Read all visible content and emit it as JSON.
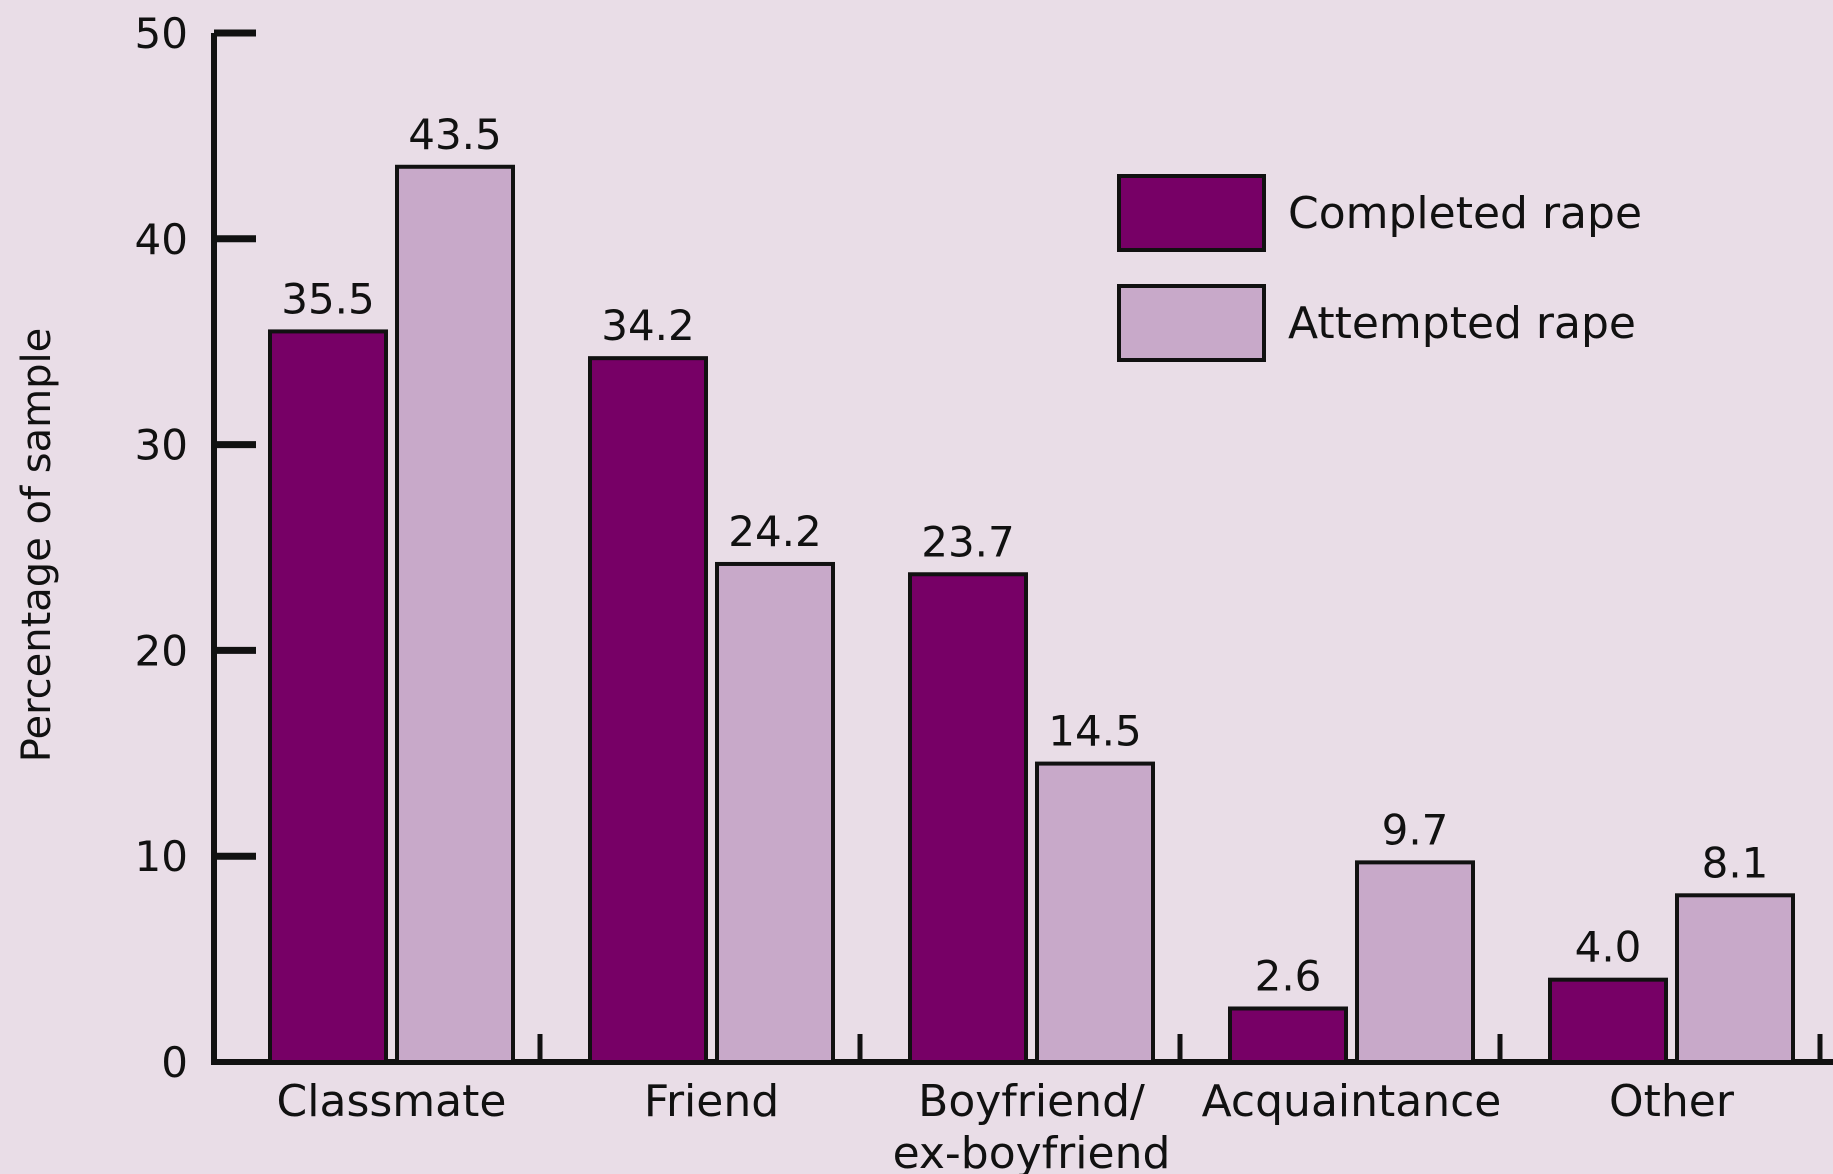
{
  "chart_data": {
    "type": "bar",
    "ylabel": "Percentage of sample",
    "ylim": [
      0,
      50
    ],
    "yticks": [
      0,
      10,
      20,
      30,
      40,
      50
    ],
    "categories": [
      [
        "Classmate"
      ],
      [
        "Friend"
      ],
      [
        "Boyfriend/",
        "ex-boyfriend"
      ],
      [
        "Acquaintance"
      ],
      [
        "Other"
      ]
    ],
    "series": [
      {
        "name": "Completed rape",
        "color": "#770066",
        "values": [
          35.5,
          34.2,
          23.7,
          2.6,
          4.0
        ],
        "labels": [
          "35.5",
          "34.2",
          "23.7",
          "2.6",
          "4.0"
        ]
      },
      {
        "name": "Attempted rape",
        "color": "#c8a9c9",
        "values": [
          43.5,
          24.2,
          14.5,
          9.7,
          8.1
        ],
        "labels": [
          "43.5",
          "24.2",
          "14.5",
          "9.7",
          "8.1"
        ]
      }
    ],
    "legend_position": "top-right",
    "grid": false
  }
}
